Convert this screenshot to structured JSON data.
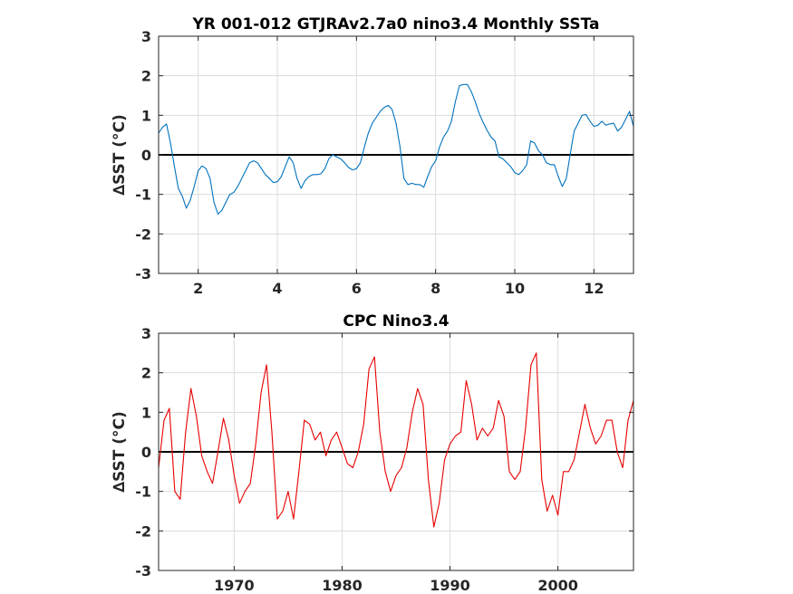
{
  "chart_data": [
    {
      "type": "line",
      "title": "YR 001-012 GTJRAv2.7a0 nino3.4 Monthly SSTa",
      "ylabel": "∆SST (°C)",
      "xlim": [
        1,
        13
      ],
      "ylim": [
        -3,
        3
      ],
      "xticks": [
        2,
        4,
        6,
        8,
        10,
        12
      ],
      "xtick_labels": [
        "2",
        "4",
        "6",
        "8",
        "10",
        "12"
      ],
      "yticks": [
        -3,
        -2,
        -1,
        0,
        1,
        2,
        3
      ],
      "ytick_labels": [
        "-3",
        "-2",
        "-1",
        "0",
        "1",
        "2",
        "3"
      ],
      "grid": true,
      "zero_line": true,
      "color": "#0072bd",
      "series": [
        {
          "x": [
            1.0,
            1.1,
            1.2,
            1.3,
            1.4,
            1.5,
            1.6,
            1.7,
            1.8,
            1.9,
            2.0,
            2.1,
            2.2,
            2.3,
            2.4,
            2.5,
            2.6,
            2.7,
            2.8,
            2.9,
            3.0,
            3.1,
            3.2,
            3.3,
            3.4,
            3.5,
            3.6,
            3.7,
            3.8,
            3.9,
            4.0,
            4.1,
            4.2,
            4.3,
            4.4,
            4.5,
            4.6,
            4.7,
            4.8,
            4.9,
            5.0,
            5.1,
            5.2,
            5.3,
            5.4,
            5.5,
            5.6,
            5.7,
            5.8,
            5.9,
            6.0,
            6.1,
            6.2,
            6.3,
            6.4,
            6.5,
            6.6,
            6.7,
            6.8,
            6.9,
            7.0,
            7.1,
            7.2,
            7.3,
            7.4,
            7.5,
            7.6,
            7.7,
            7.8,
            7.9,
            8.0,
            8.1,
            8.2,
            8.3,
            8.4,
            8.5,
            8.6,
            8.7,
            8.8,
            8.9,
            9.0,
            9.1,
            9.2,
            9.3,
            9.4,
            9.5,
            9.6,
            9.7,
            9.8,
            9.9,
            10.0,
            10.1,
            10.2,
            10.3,
            10.4,
            10.5,
            10.6,
            10.7,
            10.8,
            10.9,
            11.0,
            11.1,
            11.2,
            11.3,
            11.4,
            11.5,
            11.6,
            11.7,
            11.8,
            11.9,
            12.0,
            12.1,
            12.2,
            12.3,
            12.4,
            12.5,
            12.6,
            12.7,
            12.8,
            12.9,
            13.0
          ],
          "y": [
            0.55,
            0.7,
            0.78,
            0.3,
            -0.3,
            -0.85,
            -1.05,
            -1.35,
            -1.15,
            -0.8,
            -0.4,
            -0.28,
            -0.35,
            -0.6,
            -1.2,
            -1.5,
            -1.4,
            -1.2,
            -1.0,
            -0.95,
            -0.8,
            -0.6,
            -0.4,
            -0.2,
            -0.15,
            -0.2,
            -0.35,
            -0.5,
            -0.6,
            -0.7,
            -0.68,
            -0.55,
            -0.3,
            -0.05,
            -0.2,
            -0.6,
            -0.85,
            -0.65,
            -0.55,
            -0.5,
            -0.5,
            -0.48,
            -0.35,
            -0.1,
            0.0,
            -0.05,
            -0.1,
            -0.2,
            -0.32,
            -0.38,
            -0.35,
            -0.2,
            0.2,
            0.55,
            0.8,
            0.95,
            1.1,
            1.2,
            1.25,
            1.15,
            0.8,
            0.2,
            -0.6,
            -0.75,
            -0.72,
            -0.75,
            -0.75,
            -0.82,
            -0.55,
            -0.3,
            -0.15,
            0.2,
            0.45,
            0.6,
            0.85,
            1.35,
            1.75,
            1.78,
            1.78,
            1.6,
            1.35,
            1.05,
            0.82,
            0.62,
            0.45,
            0.35,
            -0.05,
            -0.1,
            -0.2,
            -0.3,
            -0.45,
            -0.5,
            -0.4,
            -0.25,
            0.35,
            0.3,
            0.1,
            0.0,
            -0.2,
            -0.25,
            -0.25,
            -0.55,
            -0.8,
            -0.6,
            0.0,
            0.6,
            0.8,
            1.0,
            1.02,
            0.85,
            0.72,
            0.75,
            0.85,
            0.75,
            0.78,
            0.8,
            0.6,
            0.7,
            0.9,
            1.1,
            0.72
          ]
        }
      ]
    },
    {
      "type": "line",
      "title": "CPC Nino3.4",
      "ylabel": "∆SST (°C)",
      "xlim": [
        1963,
        2007
      ],
      "ylim": [
        -3,
        3
      ],
      "xticks": [
        1970,
        1980,
        1990,
        2000
      ],
      "xtick_labels": [
        "1970",
        "1980",
        "1990",
        "2000"
      ],
      "yticks": [
        -3,
        -2,
        -1,
        0,
        1,
        2,
        3
      ],
      "ytick_labels": [
        "-3",
        "-2",
        "-1",
        "0",
        "1",
        "2",
        "3"
      ],
      "grid": true,
      "zero_line": true,
      "color": "#e60000",
      "series": [
        {
          "x": [
            1963.0,
            1963.5,
            1964.0,
            1964.5,
            1965.0,
            1965.5,
            1966.0,
            1966.5,
            1967.0,
            1967.5,
            1968.0,
            1968.5,
            1969.0,
            1969.5,
            1970.0,
            1970.5,
            1971.0,
            1971.5,
            1972.0,
            1972.5,
            1973.0,
            1973.5,
            1974.0,
            1974.5,
            1975.0,
            1975.5,
            1976.0,
            1976.5,
            1977.0,
            1977.5,
            1978.0,
            1978.5,
            1979.0,
            1979.5,
            1980.0,
            1980.5,
            1981.0,
            1981.5,
            1982.0,
            1982.5,
            1983.0,
            1983.5,
            1984.0,
            1984.5,
            1985.0,
            1985.5,
            1986.0,
            1986.5,
            1987.0,
            1987.5,
            1988.0,
            1988.5,
            1989.0,
            1989.5,
            1990.0,
            1990.5,
            1991.0,
            1991.5,
            1992.0,
            1992.5,
            1993.0,
            1993.5,
            1994.0,
            1994.5,
            1995.0,
            1995.5,
            1996.0,
            1996.5,
            1997.0,
            1997.5,
            1998.0,
            1998.5,
            1999.0,
            1999.5,
            2000.0,
            2000.5,
            2001.0,
            2001.5,
            2002.0,
            2002.5,
            2003.0,
            2003.5,
            2004.0,
            2004.5,
            2005.0,
            2005.5,
            2006.0,
            2006.5,
            2007.0
          ],
          "y": [
            -0.4,
            0.8,
            1.1,
            -1.0,
            -1.2,
            0.5,
            1.6,
            0.9,
            -0.1,
            -0.5,
            -0.8,
            0.0,
            0.85,
            0.3,
            -0.6,
            -1.3,
            -1.0,
            -0.8,
            0.2,
            1.5,
            2.2,
            0.5,
            -1.7,
            -1.5,
            -1.0,
            -1.7,
            -0.5,
            0.8,
            0.7,
            0.3,
            0.5,
            -0.1,
            0.3,
            0.5,
            0.1,
            -0.3,
            -0.4,
            0.0,
            0.7,
            2.1,
            2.4,
            0.5,
            -0.5,
            -1.0,
            -0.6,
            -0.4,
            0.1,
            1.0,
            1.6,
            1.2,
            -0.7,
            -1.9,
            -1.3,
            -0.2,
            0.2,
            0.4,
            0.5,
            1.8,
            1.2,
            0.3,
            0.6,
            0.4,
            0.6,
            1.3,
            0.9,
            -0.5,
            -0.7,
            -0.5,
            0.6,
            2.2,
            2.5,
            -0.7,
            -1.5,
            -1.1,
            -1.6,
            -0.5,
            -0.5,
            -0.2,
            0.5,
            1.2,
            0.6,
            0.2,
            0.4,
            0.8,
            0.8,
            0.0,
            -0.4,
            0.8,
            1.3
          ]
        }
      ]
    }
  ]
}
